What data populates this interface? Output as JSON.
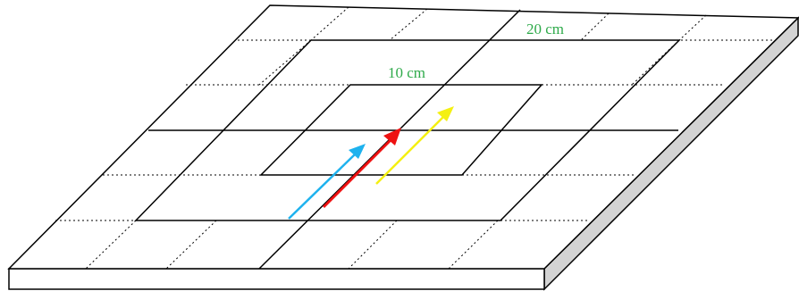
{
  "labels": {
    "outer_square": "20 cm",
    "inner_square": "10 cm"
  },
  "colors": {
    "outline": "#000000",
    "plate_side": "#d3d3d3",
    "label_text": "#2eaa4a",
    "arrow_blue": "#1eb2ee",
    "arrow_red": "#ee1111",
    "arrow_yellow": "#f4f011"
  },
  "arrows": [
    {
      "name": "blue-arrow",
      "color_key": "arrow_blue"
    },
    {
      "name": "red-arrow",
      "color_key": "arrow_red"
    },
    {
      "name": "yellow-arrow",
      "color_key": "arrow_yellow"
    }
  ]
}
